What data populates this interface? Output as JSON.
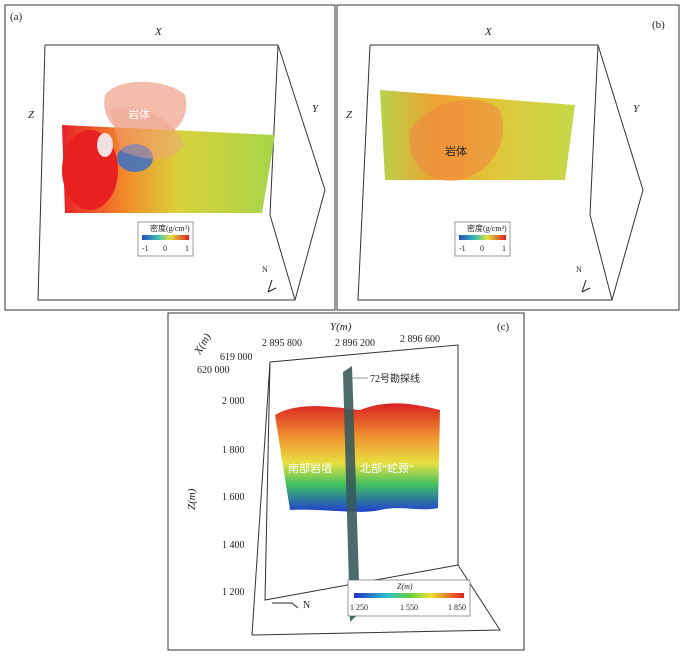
{
  "panel_a": {
    "label": "(a)",
    "axis_x": "X",
    "axis_y": "Y",
    "axis_z": "Z",
    "body": "岩体",
    "colorbar_title": "密度(g/cm³)",
    "colorbar_ticks": [
      "-1",
      "0",
      "1"
    ],
    "north": "N"
  },
  "panel_b": {
    "label": "(b)",
    "axis_x": "X",
    "axis_y": "Y",
    "axis_z": "Z",
    "body": "岩体",
    "colorbar_title": "密度(g/cm³)",
    "colorbar_ticks": [
      "-1",
      "0",
      "1"
    ],
    "north": "N"
  },
  "panel_c": {
    "label": "(c)",
    "y_axis_title": "Y(m)",
    "y_ticks": [
      "2 895 800",
      "2 896 200",
      "2 896 600"
    ],
    "x_axis_title": "X(m)",
    "x_ticks": [
      "619 000",
      "620 000"
    ],
    "z_axis_title": "Z(m)",
    "z_ticks": [
      "2 000",
      "1 800",
      "1 600",
      "1 400",
      "1 200"
    ],
    "section_line": "72号勘探线",
    "south_label": "南部岩墙",
    "north_label": "北部“蛇颈”",
    "colorbar_title": "Z(m)",
    "colorbar_ticks": [
      "1 250",
      "1 550",
      "1 850"
    ],
    "north": "N"
  }
}
